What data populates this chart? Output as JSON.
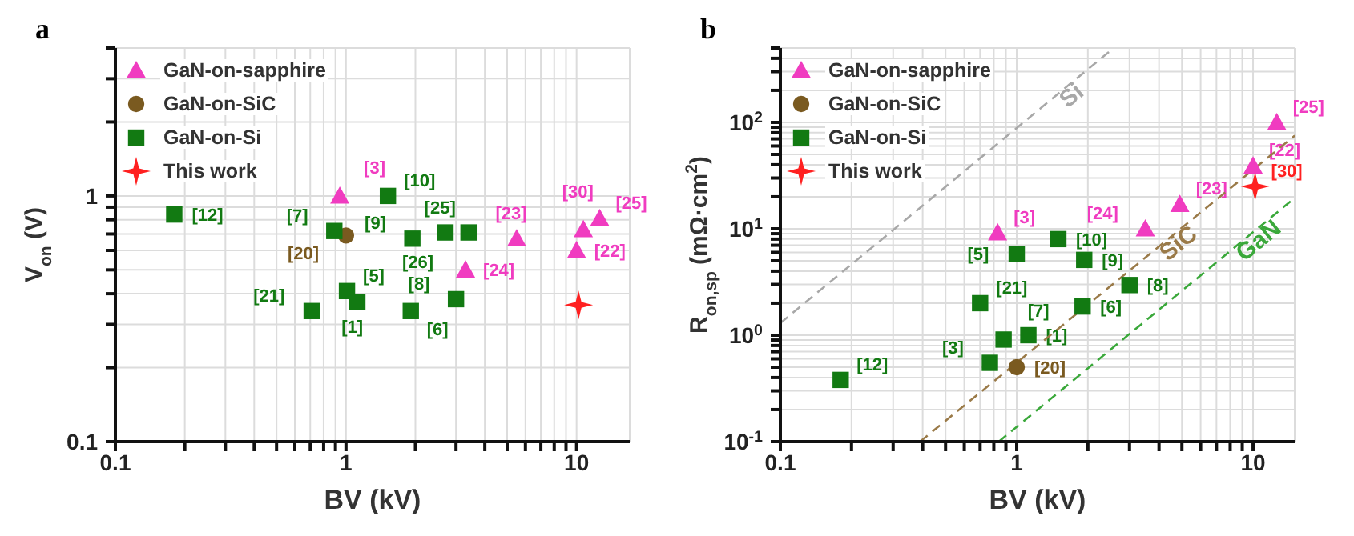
{
  "chart_data": [
    {
      "type": "scatter",
      "title": "a",
      "xlabel": "BV (kV)",
      "ylabel": "V$_{on}$ (V)",
      "log": "xy",
      "grid": true,
      "legend": "top left",
      "xlim": [
        0.1,
        17
      ],
      "xticks": [
        0.1,
        {
          "value": 0.2,
          "label": null
        },
        {
          "value": 0.3,
          "label": null
        },
        {
          "value": 0.4,
          "label": null
        },
        {
          "value": 0.5,
          "label": null
        },
        {
          "value": 0.6,
          "label": null
        },
        {
          "value": 0.7,
          "label": null
        },
        {
          "value": 0.8,
          "label": null
        },
        {
          "value": 0.9,
          "label": null
        },
        1,
        {
          "value": 2,
          "label": null
        },
        {
          "value": 3,
          "label": null
        },
        {
          "value": 4,
          "label": null
        },
        {
          "value": 5,
          "label": null
        },
        {
          "value": 6,
          "label": null
        },
        {
          "value": 7,
          "label": null
        },
        {
          "value": 8,
          "label": null
        },
        {
          "value": 9,
          "label": null
        },
        10
      ],
      "ylim": [
        0.1,
        4
      ],
      "yticks": [
        0.1,
        {
          "value": 0.2,
          "label": null
        },
        {
          "value": 0.3,
          "label": null
        },
        {
          "value": 0.4,
          "label": null
        },
        {
          "value": 0.5,
          "label": null
        },
        {
          "value": 0.6,
          "label": null
        },
        {
          "value": 0.7,
          "label": null
        },
        {
          "value": 0.8,
          "label": null
        },
        {
          "value": 0.9,
          "label": null
        },
        1,
        {
          "value": 2,
          "label": null
        },
        {
          "value": 3,
          "label": null
        },
        {
          "value": 4,
          "label": null
        }
      ],
      "series": [
        {
          "name": "GaN-on-sapphire",
          "color": "#f03cc0",
          "marker": "triangle",
          "x": [
            0.94,
            3.3,
            5.5,
            10,
            10.7,
            12.6
          ],
          "values": [
            1.0,
            0.5,
            0.67,
            0.6,
            0.73,
            0.81
          ]
        },
        {
          "name": "GaN-on-SiC",
          "color": "#7a5a20",
          "marker": "circle",
          "x": [
            1.0
          ],
          "values": [
            0.69
          ]
        },
        {
          "name": "GaN-on-Si",
          "color": "#127a12",
          "marker": "square",
          "x": [
            0.18,
            0.89,
            1.52,
            1.94,
            2.7,
            3.4,
            1.01,
            1.12,
            0.71,
            1.91,
            3.0
          ],
          "values": [
            0.84,
            0.72,
            1.0,
            0.67,
            0.71,
            0.71,
            0.41,
            0.37,
            0.34,
            0.34,
            0.38
          ]
        },
        {
          "name": "This work",
          "color": "#ff2020",
          "marker": "star",
          "x": [
            10.2
          ],
          "values": [
            0.36
          ]
        }
      ],
      "annotations": [
        {
          "text": "[3]",
          "x": 0.94,
          "y": 1.0
        },
        {
          "text": "[24]",
          "x": 3.3,
          "y": 0.5
        },
        {
          "text": "[23]",
          "x": 5.5,
          "y": 0.67
        },
        {
          "text": "[22]",
          "x": 10,
          "y": 0.6
        },
        {
          "text": "[30]",
          "x": 10.7,
          "y": 0.73
        },
        {
          "text": "[25]",
          "x": 12.6,
          "y": 0.81
        },
        {
          "text": "[20]",
          "x": 1.0,
          "y": 0.69
        },
        {
          "text": "[12]",
          "x": 0.18,
          "y": 0.84
        },
        {
          "text": "[7]",
          "x": 0.89,
          "y": 0.72
        },
        {
          "text": "[10]",
          "x": 1.52,
          "y": 1.0
        },
        {
          "text": "[9]",
          "x": 1.94,
          "y": 0.67
        },
        {
          "text": "[25]",
          "x": 2.7,
          "y": 0.71
        },
        {
          "text": "[26]",
          "x": 3.4,
          "y": 0.71
        },
        {
          "text": "[5]",
          "x": 1.01,
          "y": 0.41
        },
        {
          "text": "[1]",
          "x": 1.12,
          "y": 0.37
        },
        {
          "text": "[21]",
          "x": 0.71,
          "y": 0.34
        },
        {
          "text": "[6]",
          "x": 1.91,
          "y": 0.34
        },
        {
          "text": "[8]",
          "x": 3.0,
          "y": 0.38
        }
      ]
    },
    {
      "type": "scatter",
      "title": "b",
      "xlabel": "BV (kV)",
      "ylabel": "R$_{on,sp}$ (mΩ·cm$^{2}$)",
      "log": "xy",
      "grid": true,
      "legend": "top left",
      "xlim": [
        0.1,
        15
      ],
      "xticks": [
        0.1,
        {
          "value": 0.2,
          "label": null
        },
        {
          "value": 0.3,
          "label": null
        },
        {
          "value": 0.4,
          "label": null
        },
        {
          "value": 0.5,
          "label": null
        },
        {
          "value": 0.6,
          "label": null
        },
        {
          "value": 0.7,
          "label": null
        },
        {
          "value": 0.8,
          "label": null
        },
        {
          "value": 0.9,
          "label": null
        },
        1,
        {
          "value": 2,
          "label": null
        },
        {
          "value": 3,
          "label": null
        },
        {
          "value": 4,
          "label": null
        },
        {
          "value": 5,
          "label": null
        },
        {
          "value": 6,
          "label": null
        },
        {
          "value": 7,
          "label": null
        },
        {
          "value": 8,
          "label": null
        },
        {
          "value": 9,
          "label": null
        },
        10
      ],
      "ylim": [
        0.1,
        500
      ],
      "yticks": [
        {
          "value": 0.1,
          "label": "10$^{-1}$"
        },
        {
          "value": 0.2,
          "label": null
        },
        {
          "value": 0.3,
          "label": null
        },
        {
          "value": 0.4,
          "label": null
        },
        {
          "value": 0.5,
          "label": null
        },
        {
          "value": 0.6,
          "label": null
        },
        {
          "value": 0.7,
          "label": null
        },
        {
          "value": 0.8,
          "label": null
        },
        {
          "value": 0.9,
          "label": null
        },
        {
          "value": 1,
          "label": "10$^{0}$"
        },
        {
          "value": 2,
          "label": null
        },
        {
          "value": 3,
          "label": null
        },
        {
          "value": 4,
          "label": null
        },
        {
          "value": 5,
          "label": null
        },
        {
          "value": 6,
          "label": null
        },
        {
          "value": 7,
          "label": null
        },
        {
          "value": 8,
          "label": null
        },
        {
          "value": 9,
          "label": null
        },
        {
          "value": 10,
          "label": "10$^{1}$"
        },
        {
          "value": 20,
          "label": null
        },
        {
          "value": 30,
          "label": null
        },
        {
          "value": 40,
          "label": null
        },
        {
          "value": 50,
          "label": null
        },
        {
          "value": 60,
          "label": null
        },
        {
          "value": 70,
          "label": null
        },
        {
          "value": 80,
          "label": null
        },
        {
          "value": 90,
          "label": null
        },
        {
          "value": 100,
          "label": "10$^{2}$"
        },
        {
          "value": 200,
          "label": null
        },
        {
          "value": 300,
          "label": null
        },
        {
          "value": 400,
          "label": null
        },
        {
          "value": 500,
          "label": null
        }
      ],
      "series": [
        {
          "name": "Si",
          "type": "line",
          "line_style": "dashed",
          "color": "#a8a8a8",
          "x": [
            0.1,
            2.57
          ],
          "values": [
            1.3,
            500
          ]
        },
        {
          "name": "SiC",
          "type": "line",
          "line_style": "dashed",
          "color": "#9a7a48",
          "x": [
            0.39,
            15
          ],
          "values": [
            0.1,
            75
          ]
        },
        {
          "name": "GaN",
          "type": "line",
          "line_style": "dashed",
          "color": "#3aa83a",
          "x": [
            0.84,
            15
          ],
          "values": [
            0.1,
            19.5
          ]
        },
        {
          "name": "GaN-on-sapphire",
          "color": "#f03cc0",
          "marker": "triangle",
          "x": [
            0.83,
            3.5,
            4.9,
            10,
            12.6
          ],
          "values": [
            9.2,
            10,
            17,
            39,
            100
          ]
        },
        {
          "name": "GaN-on-SiC",
          "color": "#7a5a20",
          "marker": "circle",
          "x": [
            1.0
          ],
          "values": [
            0.5
          ]
        },
        {
          "name": "GaN-on-Si",
          "color": "#127a12",
          "marker": "square",
          "x": [
            0.18,
            0.77,
            0.88,
            1.12,
            0.7,
            1.0,
            1.5,
            1.93,
            1.9,
            3.0
          ],
          "values": [
            0.38,
            0.55,
            0.91,
            1.0,
            2.0,
            5.8,
            8,
            5.1,
            1.86,
            2.96
          ]
        },
        {
          "name": "This work",
          "color": "#ff2020",
          "marker": "star",
          "x": [
            10.2
          ],
          "values": [
            25
          ]
        }
      ],
      "annotations": [
        {
          "text": "[3]",
          "x": 0.83,
          "y": 9.2
        },
        {
          "text": "[24]",
          "x": 3.5,
          "y": 10
        },
        {
          "text": "[23]",
          "x": 4.9,
          "y": 17
        },
        {
          "text": "[22]",
          "x": 10,
          "y": 39
        },
        {
          "text": "[25]",
          "x": 12.6,
          "y": 100
        },
        {
          "text": "[20]",
          "x": 1.0,
          "y": 0.5
        },
        {
          "text": "[12]",
          "x": 0.18,
          "y": 0.38
        },
        {
          "text": "[3]",
          "x": 0.77,
          "y": 0.55
        },
        {
          "text": "[7]",
          "x": 0.88,
          "y": 0.91
        },
        {
          "text": "[1]",
          "x": 1.12,
          "y": 1.0
        },
        {
          "text": "[21]",
          "x": 0.7,
          "y": 2.0
        },
        {
          "text": "[5]",
          "x": 1.0,
          "y": 5.8
        },
        {
          "text": "[10]",
          "x": 1.5,
          "y": 8
        },
        {
          "text": "[9]",
          "x": 1.93,
          "y": 5.1
        },
        {
          "text": "[6]",
          "x": 1.9,
          "y": 1.86
        },
        {
          "text": "[8]",
          "x": 3.0,
          "y": 2.96
        },
        {
          "text": "[30]",
          "x": 10.2,
          "y": 25
        }
      ]
    }
  ]
}
